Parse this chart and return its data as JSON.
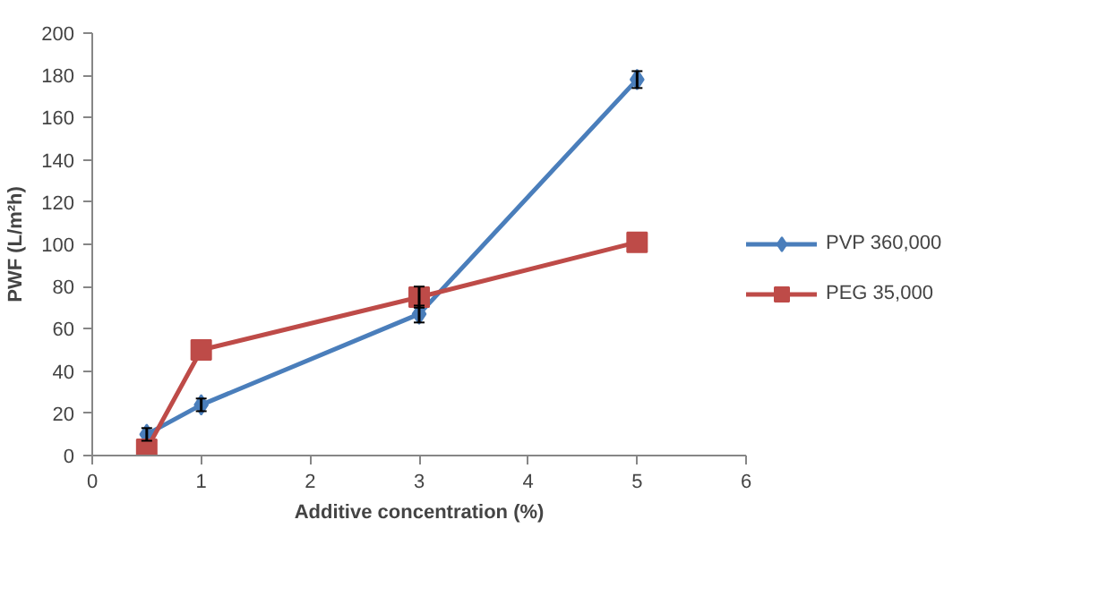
{
  "chart_data": {
    "type": "line",
    "xlabel": "Additive concentration (%)",
    "ylabel": "PWF (L/m²h)",
    "x": [
      0.5,
      1,
      3,
      5
    ],
    "series": [
      {
        "name": "PVP 360,000",
        "color": "#4a7ebb",
        "values": [
          10,
          24,
          67,
          178
        ],
        "errors": [
          3,
          3,
          4,
          4
        ],
        "marker": "diamond"
      },
      {
        "name": "PEG 35,000",
        "color": "#be4b48",
        "values": [
          3,
          50,
          75,
          101
        ],
        "errors": [
          null,
          null,
          5,
          null
        ],
        "marker": "square"
      }
    ],
    "xlim": [
      0,
      6
    ],
    "xticks": [
      0,
      1,
      2,
      3,
      4,
      5,
      6
    ],
    "ylim": [
      0,
      200
    ],
    "yticks": [
      0,
      20,
      40,
      60,
      80,
      100,
      120,
      140,
      160,
      180,
      200
    ],
    "grid": false,
    "legend": "right",
    "line_style": "solid"
  }
}
